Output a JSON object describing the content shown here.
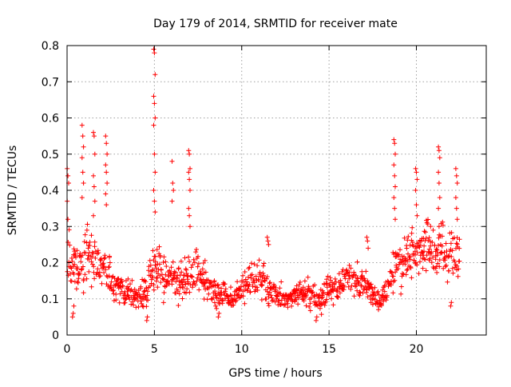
{
  "chart_data": {
    "type": "scatter",
    "title": "Day 179 of 2014, SRMTID for receiver mate",
    "xlabel": "GPS time / hours",
    "ylabel": "SRMTID / TECUs",
    "xlim": [
      0,
      24
    ],
    "ylim": [
      0,
      0.8
    ],
    "xticks": [
      0,
      5,
      10,
      15,
      20
    ],
    "yticks": [
      0,
      0.1,
      0.2,
      0.3,
      0.4,
      0.5,
      0.6,
      0.7,
      0.8
    ],
    "xtick_labels": [
      "0",
      "5",
      "10",
      "15",
      "20"
    ],
    "ytick_labels": [
      "0",
      "0.1",
      "0.2",
      "0.3",
      "0.4",
      "0.5",
      "0.6",
      "0.7",
      "0.8"
    ],
    "grid": true,
    "marker": "+",
    "color": "#ff0000",
    "series": [
      {
        "name": "SRMTID",
        "approx_profile": {
          "x_hours": [
            0.0,
            0.3,
            0.6,
            0.9,
            1.2,
            1.5,
            1.8,
            2.1,
            2.4,
            2.7,
            3.0,
            3.5,
            4.0,
            4.5,
            5.0,
            5.3,
            5.6,
            6.0,
            6.5,
            7.0,
            7.5,
            8.0,
            8.5,
            9.0,
            9.5,
            10.0,
            10.5,
            11.0,
            11.5,
            12.0,
            12.5,
            13.0,
            13.5,
            14.0,
            14.5,
            15.0,
            15.5,
            16.0,
            16.5,
            17.0,
            17.5,
            18.0,
            18.5,
            19.0,
            19.5,
            20.0,
            20.5,
            21.0,
            21.5,
            22.0,
            22.5
          ],
          "y_center": [
            0.22,
            0.2,
            0.18,
            0.2,
            0.21,
            0.22,
            0.2,
            0.19,
            0.15,
            0.14,
            0.13,
            0.12,
            0.1,
            0.12,
            0.2,
            0.18,
            0.16,
            0.15,
            0.14,
            0.16,
            0.17,
            0.14,
            0.12,
            0.11,
            0.1,
            0.13,
            0.15,
            0.16,
            0.13,
            0.11,
            0.1,
            0.11,
            0.12,
            0.11,
            0.1,
            0.13,
            0.14,
            0.16,
            0.15,
            0.14,
            0.11,
            0.1,
            0.16,
            0.2,
            0.22,
            0.24,
            0.25,
            0.23,
            0.22,
            0.21,
            0.22
          ],
          "y_spread": [
            0.1,
            0.08,
            0.09,
            0.1,
            0.09,
            0.1,
            0.08,
            0.07,
            0.06,
            0.05,
            0.05,
            0.04,
            0.03,
            0.05,
            0.08,
            0.07,
            0.06,
            0.06,
            0.06,
            0.06,
            0.06,
            0.05,
            0.05,
            0.04,
            0.04,
            0.05,
            0.05,
            0.05,
            0.05,
            0.04,
            0.03,
            0.03,
            0.04,
            0.04,
            0.04,
            0.05,
            0.05,
            0.05,
            0.05,
            0.05,
            0.04,
            0.03,
            0.07,
            0.08,
            0.08,
            0.08,
            0.09,
            0.08,
            0.08,
            0.08,
            0.06
          ]
        },
        "spikes": [
          {
            "x": 0.05,
            "ys": [
              0.46,
              0.44,
              0.42,
              0.37,
              0.32
            ]
          },
          {
            "x": 0.35,
            "ys": [
              0.05,
              0.06,
              0.08
            ]
          },
          {
            "x": 0.9,
            "ys": [
              0.58,
              0.55,
              0.52,
              0.49,
              0.45,
              0.42,
              0.38
            ]
          },
          {
            "x": 1.55,
            "ys": [
              0.56,
              0.55,
              0.5,
              0.44,
              0.41,
              0.37,
              0.33
            ]
          },
          {
            "x": 2.25,
            "ys": [
              0.55,
              0.53,
              0.5,
              0.47,
              0.45,
              0.42,
              0.39,
              0.36
            ]
          },
          {
            "x": 4.6,
            "ys": [
              0.04,
              0.05
            ]
          },
          {
            "x": 5.0,
            "ys": [
              0.79,
              0.78,
              0.72,
              0.66,
              0.64,
              0.6,
              0.58,
              0.5,
              0.45,
              0.4,
              0.37,
              0.34
            ]
          },
          {
            "x": 6.05,
            "ys": [
              0.48,
              0.42,
              0.4,
              0.37
            ]
          },
          {
            "x": 7.0,
            "ys": [
              0.51,
              0.5,
              0.46,
              0.45,
              0.43,
              0.4,
              0.35,
              0.33,
              0.3
            ]
          },
          {
            "x": 8.7,
            "ys": [
              0.05,
              0.06
            ]
          },
          {
            "x": 11.5,
            "ys": [
              0.27,
              0.26,
              0.25
            ]
          },
          {
            "x": 14.3,
            "ys": [
              0.04,
              0.05
            ]
          },
          {
            "x": 17.2,
            "ys": [
              0.27,
              0.26,
              0.24
            ]
          },
          {
            "x": 18.75,
            "ys": [
              0.54,
              0.53,
              0.5,
              0.47,
              0.44,
              0.41,
              0.38,
              0.35,
              0.32
            ]
          },
          {
            "x": 20.0,
            "ys": [
              0.46,
              0.45,
              0.43,
              0.4,
              0.36,
              0.33
            ]
          },
          {
            "x": 21.3,
            "ys": [
              0.52,
              0.51,
              0.49,
              0.45,
              0.42,
              0.38,
              0.35,
              0.3
            ]
          },
          {
            "x": 22.3,
            "ys": [
              0.46,
              0.44,
              0.42,
              0.38,
              0.35,
              0.32
            ]
          },
          {
            "x": 22.0,
            "ys": [
              0.08,
              0.09
            ]
          }
        ]
      }
    ]
  }
}
